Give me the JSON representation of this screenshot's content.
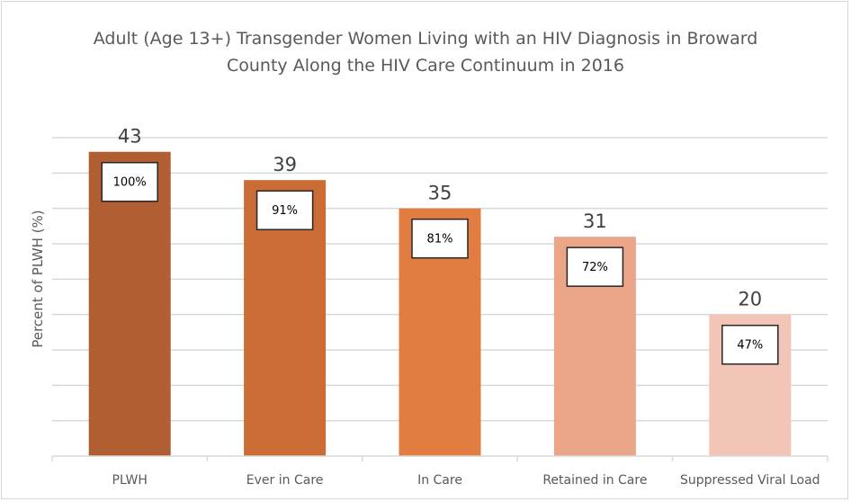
{
  "chart_data": {
    "type": "bar",
    "title": "Adult (Age 13+) Transgender Women Living with an HIV Diagnosis in Broward County Along the HIV Care Continuum in 2016",
    "title_lines": [
      "Adult (Age 13+) Transgender Women Living with an HIV Diagnosis in Broward",
      "County Along the HIV Care Continuum in 2016"
    ],
    "xlabel": "",
    "ylabel": "Percent of PLWH (%)",
    "ylim": [
      0,
      45
    ],
    "grid_step": 5,
    "grid": true,
    "categories": [
      "PLWH",
      "Ever in Care",
      "In Care",
      "Retained in Care",
      "Suppressed Viral Load"
    ],
    "values": [
      43,
      39,
      35,
      31,
      20
    ],
    "percent_labels": [
      "100%",
      "91%",
      "81%",
      "72%",
      "47%"
    ],
    "colors": [
      "#B05E32",
      "#CB6B36",
      "#E17D40",
      "#EBA588",
      "#F2C5B6"
    ]
  }
}
